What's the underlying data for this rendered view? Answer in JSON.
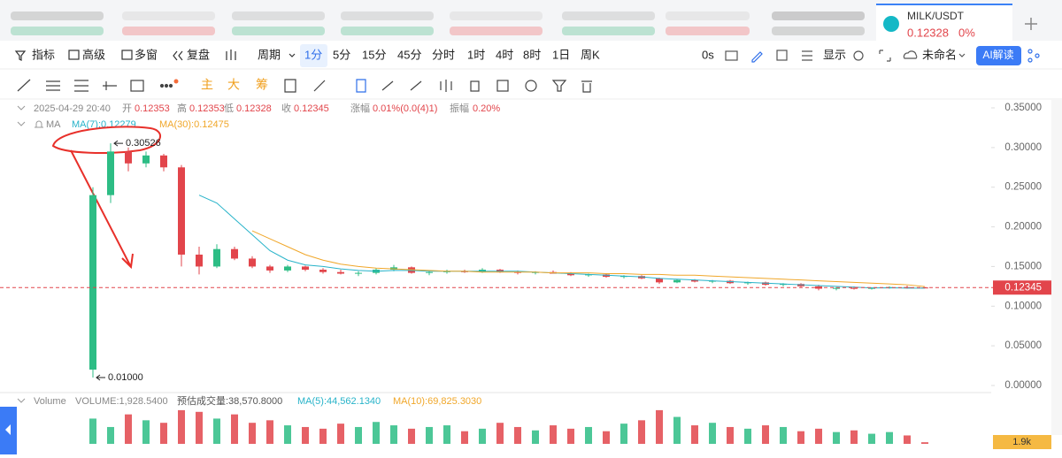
{
  "ui": {
    "pair": "MILK/USDT",
    "pair_price": "0.12328",
    "pair_change": "0%",
    "toolbar": [
      "指标",
      "高级",
      "多窗",
      "复盘",
      "周期"
    ],
    "periods": [
      "1分",
      "5分",
      "15分",
      "45分",
      "分时",
      "1时",
      "4时",
      "8时",
      "1日",
      "周K"
    ],
    "countdown": "0s",
    "display": "显示",
    "layout_name": "未命名",
    "ai_button": "AI解读",
    "draw_tools": [
      "主",
      "大",
      "筹"
    ]
  },
  "header": {
    "time": "2025-04-29 20:40",
    "open_label": "开",
    "open": "0.12353",
    "high_label": "高",
    "high": "0.12353",
    "low_label": "低",
    "low": "0.12328",
    "close_label": "收",
    "close": "0.12345",
    "change_label": "涨幅",
    "change": "0.01%(0.0(4)1)",
    "amp_label": "振幅",
    "amp": "0.20%",
    "ma_title": "MA",
    "ma7": "MA(7):0.12279",
    "ma30": "MA(30):0.12475",
    "vol_title": "Volume",
    "vol": "VOLUME:1,928.5400",
    "vol_est": "预估成交量:38,570.8000",
    "vol_ma5": "MA(5):44,562.1340",
    "vol_ma10": "MA(10):69,825.3030"
  },
  "chart_data": [
    {
      "type": "candlestick",
      "up_color": "#2dbd85",
      "down_color": "#e2454b",
      "open": [
        0.02,
        0.24,
        0.295,
        0.28,
        0.29,
        0.275,
        0.165,
        0.15,
        0.172,
        0.16,
        0.15,
        0.145,
        0.15,
        0.146,
        0.143,
        0.141,
        0.142,
        0.146,
        0.149,
        0.142,
        0.143,
        0.144,
        0.143,
        0.146,
        0.143,
        0.142,
        0.143,
        0.141,
        0.139,
        0.14,
        0.137,
        0.138,
        0.135,
        0.13,
        0.133,
        0.131,
        0.132,
        0.129,
        0.13,
        0.127,
        0.128,
        0.125,
        0.122,
        0.123,
        0.122,
        0.123,
        0.124,
        0.12353
      ],
      "high": [
        0.25,
        0.30526,
        0.3,
        0.295,
        0.292,
        0.278,
        0.175,
        0.178,
        0.175,
        0.163,
        0.152,
        0.152,
        0.151,
        0.148,
        0.146,
        0.144,
        0.148,
        0.152,
        0.15,
        0.145,
        0.146,
        0.146,
        0.148,
        0.147,
        0.145,
        0.144,
        0.145,
        0.143,
        0.141,
        0.141,
        0.139,
        0.139,
        0.136,
        0.134,
        0.134,
        0.133,
        0.133,
        0.131,
        0.131,
        0.129,
        0.129,
        0.127,
        0.124,
        0.125,
        0.124,
        0.125,
        0.126,
        0.12353
      ],
      "low": [
        0.01,
        0.23,
        0.27,
        0.275,
        0.27,
        0.15,
        0.14,
        0.148,
        0.158,
        0.148,
        0.142,
        0.143,
        0.144,
        0.141,
        0.14,
        0.138,
        0.14,
        0.144,
        0.141,
        0.139,
        0.141,
        0.142,
        0.142,
        0.142,
        0.14,
        0.14,
        0.141,
        0.138,
        0.137,
        0.136,
        0.135,
        0.134,
        0.128,
        0.129,
        0.13,
        0.129,
        0.128,
        0.127,
        0.126,
        0.125,
        0.124,
        0.12,
        0.12,
        0.121,
        0.121,
        0.122,
        0.122,
        0.12328
      ],
      "close": [
        0.24,
        0.295,
        0.28,
        0.29,
        0.275,
        0.165,
        0.15,
        0.172,
        0.16,
        0.15,
        0.145,
        0.15,
        0.146,
        0.143,
        0.141,
        0.142,
        0.146,
        0.149,
        0.142,
        0.143,
        0.144,
        0.143,
        0.146,
        0.143,
        0.142,
        0.143,
        0.141,
        0.139,
        0.14,
        0.137,
        0.138,
        0.135,
        0.13,
        0.133,
        0.131,
        0.132,
        0.129,
        0.13,
        0.127,
        0.128,
        0.125,
        0.122,
        0.123,
        0.122,
        0.123,
        0.124,
        0.1235,
        0.12345
      ],
      "series": [
        {
          "color": "#27b3c9",
          "values": [
            null,
            null,
            null,
            null,
            null,
            null,
            0.24,
            0.23,
            0.21,
            0.19,
            0.17,
            0.158,
            0.152,
            0.15,
            0.147,
            0.145,
            0.144,
            0.145,
            0.145,
            0.144,
            0.144,
            0.144,
            0.144,
            0.144,
            0.144,
            0.143,
            0.142,
            0.141,
            0.14,
            0.139,
            0.138,
            0.137,
            0.135,
            0.134,
            0.133,
            0.132,
            0.131,
            0.13,
            0.129,
            0.128,
            0.127,
            0.126,
            0.125,
            0.124,
            0.123,
            0.1232,
            0.1228,
            0.12279
          ]
        },
        {
          "color": "#f0a72a",
          "values": [
            null,
            null,
            null,
            null,
            null,
            null,
            null,
            null,
            null,
            0.195,
            0.185,
            0.175,
            0.165,
            0.158,
            0.153,
            0.15,
            0.148,
            0.147,
            0.146,
            0.145,
            0.144,
            0.144,
            0.143,
            0.143,
            0.143,
            0.143,
            0.142,
            0.142,
            0.142,
            0.141,
            0.141,
            0.14,
            0.14,
            0.139,
            0.139,
            0.138,
            0.137,
            0.136,
            0.135,
            0.134,
            0.133,
            0.132,
            0.131,
            0.13,
            0.129,
            0.128,
            0.127,
            0.12475
          ]
        }
      ],
      "high_label": "0.30526",
      "low_label": "0.01000",
      "last_price": 0.12345,
      "last_price_label": "0.12345",
      "ylim": [
        0,
        0.35
      ],
      "yticks": [
        {
          "value": 0,
          "label": "0.00000"
        },
        {
          "value": 0.05,
          "label": "0.05000"
        },
        {
          "value": 0.1,
          "label": "0.10000"
        },
        {
          "value": 0.15,
          "label": "0.15000"
        },
        {
          "value": 0.2,
          "label": "0.20000"
        },
        {
          "value": 0.25,
          "label": "0.25000"
        },
        {
          "value": 0.3,
          "label": "0.30000"
        },
        {
          "value": 0.35,
          "label": "0.35000"
        }
      ]
    },
    {
      "type": "bar",
      "values": [
        30000,
        20000,
        35000,
        28000,
        25000,
        40000,
        38000,
        30000,
        35000,
        25000,
        28000,
        22000,
        20000,
        18000,
        24000,
        20000,
        26000,
        22000,
        18000,
        20000,
        22000,
        15000,
        18000,
        25000,
        20000,
        16000,
        22000,
        18000,
        20000,
        15000,
        24000,
        28000,
        40000,
        32000,
        22000,
        25000,
        20000,
        18000,
        22000,
        20000,
        15000,
        18000,
        14000,
        16000,
        12000,
        14000,
        10000,
        1928.54
      ],
      "current_label": "1.9k",
      "ylim": [
        0,
        42000
      ]
    }
  ]
}
